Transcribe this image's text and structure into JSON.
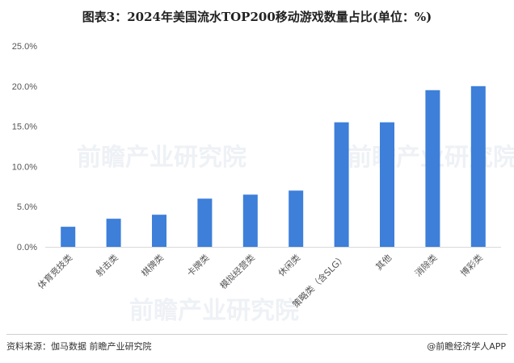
{
  "chart_data": {
    "type": "bar",
    "title": "图表3：2024年美国流水TOP200移动游戏数量占比(单位：%)",
    "categories": [
      "体育竞技类",
      "射击类",
      "棋牌类",
      "卡牌类",
      "模拟经营类",
      "休闲类",
      "策略类（含SLG）",
      "其他",
      "消除类",
      "博彩类"
    ],
    "values": [
      2.5,
      3.5,
      4.0,
      6.0,
      6.5,
      7.0,
      15.5,
      15.5,
      19.5,
      20.0
    ],
    "ylim": [
      0,
      25
    ],
    "yticks": [
      "0.0%",
      "5.0%",
      "10.0%",
      "15.0%",
      "20.0%",
      "25.0%"
    ],
    "xlabel": "",
    "ylabel": "",
    "grid": false,
    "legend": "none",
    "bar_color": "#3d7fd9"
  },
  "footer": {
    "source": "资料来源：伽马数据 前瞻产业研究院",
    "credit": "@前瞻经济学人APP"
  },
  "watermark": {
    "text": "前瞻产业研究院",
    "color": "#eef1f5"
  }
}
